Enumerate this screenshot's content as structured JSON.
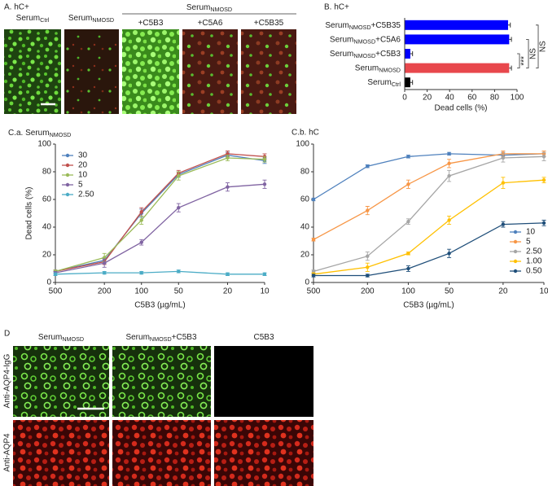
{
  "figure": {
    "panel_a": {
      "label": "A. hC+",
      "group_header": {
        "base": "Serum",
        "sub": "NMOSD"
      },
      "columns": [
        {
          "base": "Serum",
          "sub": "Ctrl"
        },
        {
          "base": "Serum",
          "sub": "NMOSD"
        },
        {
          "base": "+C5B3"
        },
        {
          "base": "+C5A6"
        },
        {
          "base": "+C5B35"
        }
      ]
    },
    "panel_d": {
      "label": "D",
      "columns": [
        {
          "base": "Serum",
          "sub": "NMOSD"
        },
        {
          "base": "Serum",
          "sub": "NMOSD",
          "suffix": "+C5B3"
        },
        {
          "base": "C5B3"
        }
      ],
      "rows": [
        "Anti-AQP4-IgG",
        "Anti-AQP4"
      ]
    }
  },
  "chart_data": [
    {
      "type": "bar",
      "orientation": "horizontal",
      "title": "B. hC+",
      "categories": [
        {
          "base": "Serum",
          "sub": "NMOSD",
          "suffix": "+C5B35"
        },
        {
          "base": "Serum",
          "sub": "NMOSD",
          "suffix": "+C5A6"
        },
        {
          "base": "Serum",
          "sub": "NMOSD",
          "suffix": "+C5B3"
        },
        {
          "base": "Serum",
          "sub": "NMOSD"
        },
        {
          "base": "Serum",
          "sub": "Ctrl"
        }
      ],
      "values": [
        92,
        93,
        5,
        93,
        5
      ],
      "errors": [
        2,
        2,
        2,
        2,
        2
      ],
      "colors": [
        "#0000ff",
        "#0000ff",
        "#0000ff",
        "#e8474c",
        "#000000"
      ],
      "xlim": [
        0,
        100
      ],
      "xticks": [
        0,
        20,
        40,
        60,
        80,
        100
      ],
      "xlabel": "Dead cells (%)",
      "annotations": [
        "***",
        "NS",
        "NS"
      ]
    },
    {
      "type": "line",
      "title": {
        "base": "C.a. Serum",
        "sub": "NMOSD"
      },
      "xlog": true,
      "x": [
        500,
        200,
        100,
        50,
        20,
        10
      ],
      "xlim": [
        500,
        10
      ],
      "xticks": [
        500,
        200,
        100,
        50,
        20,
        10
      ],
      "ylim": [
        0,
        100
      ],
      "yticks": [
        0,
        20,
        40,
        60,
        80,
        100
      ],
      "xlabel": "C5B3 (µg/mL)",
      "ylabel": "Dead cells (%)",
      "legend": "upper left",
      "series": [
        {
          "name": "30",
          "color": "#4f81bd",
          "values": [
            8,
            16,
            50,
            78,
            92,
            88
          ],
          "errors": [
            1,
            2,
            3,
            2,
            2,
            2
          ]
        },
        {
          "name": "20",
          "color": "#c0504d",
          "values": [
            8,
            15,
            51,
            79,
            93,
            91
          ],
          "errors": [
            1,
            2,
            3,
            2,
            2,
            2
          ]
        },
        {
          "name": "10",
          "color": "#9bbb59",
          "values": [
            8,
            18,
            45,
            77,
            90,
            89
          ],
          "errors": [
            1,
            3,
            3,
            3,
            2,
            2
          ]
        },
        {
          "name": "5",
          "color": "#8064a2",
          "values": [
            7,
            14,
            29,
            54,
            69,
            71
          ],
          "errors": [
            1,
            3,
            2,
            3,
            3,
            3
          ]
        },
        {
          "name": "2.50",
          "color": "#4bacc6",
          "values": [
            6,
            7,
            7,
            8,
            6,
            6
          ],
          "errors": [
            1,
            1,
            1,
            1,
            1,
            1
          ]
        }
      ]
    },
    {
      "type": "line",
      "title": "C.b. hC",
      "xlog": true,
      "x": [
        500,
        200,
        100,
        50,
        20,
        10
      ],
      "xlim": [
        500,
        10
      ],
      "xticks": [
        500,
        200,
        100,
        50,
        20,
        10
      ],
      "ylim": [
        0,
        100
      ],
      "yticks": [
        0,
        20,
        40,
        60,
        80,
        100
      ],
      "xlabel": "C5B3 (µg/mL)",
      "legend": "lower right",
      "series": [
        {
          "name": "10",
          "color": "#4f81bd",
          "values": [
            60,
            84,
            91,
            93,
            92,
            93
          ],
          "errors": [
            1,
            1,
            1,
            1,
            2,
            2
          ]
        },
        {
          "name": "5",
          "color": "#f79646",
          "values": [
            31,
            52,
            71,
            86,
            93,
            93
          ],
          "errors": [
            1,
            3,
            3,
            3,
            2,
            2
          ]
        },
        {
          "name": "2.50",
          "color": "#a5a5a5",
          "values": [
            8,
            19,
            44,
            77,
            90,
            91
          ],
          "errors": [
            1,
            3,
            2,
            4,
            3,
            3
          ]
        },
        {
          "name": "1.00",
          "color": "#ffc000",
          "values": [
            6,
            11,
            21,
            45,
            72,
            74
          ],
          "errors": [
            1,
            3,
            1,
            3,
            4,
            2
          ]
        },
        {
          "name": "0.50",
          "color": "#1f4e79",
          "values": [
            5,
            5,
            10,
            21,
            42,
            43
          ],
          "errors": [
            1,
            1,
            2,
            3,
            2,
            2
          ]
        }
      ]
    }
  ]
}
